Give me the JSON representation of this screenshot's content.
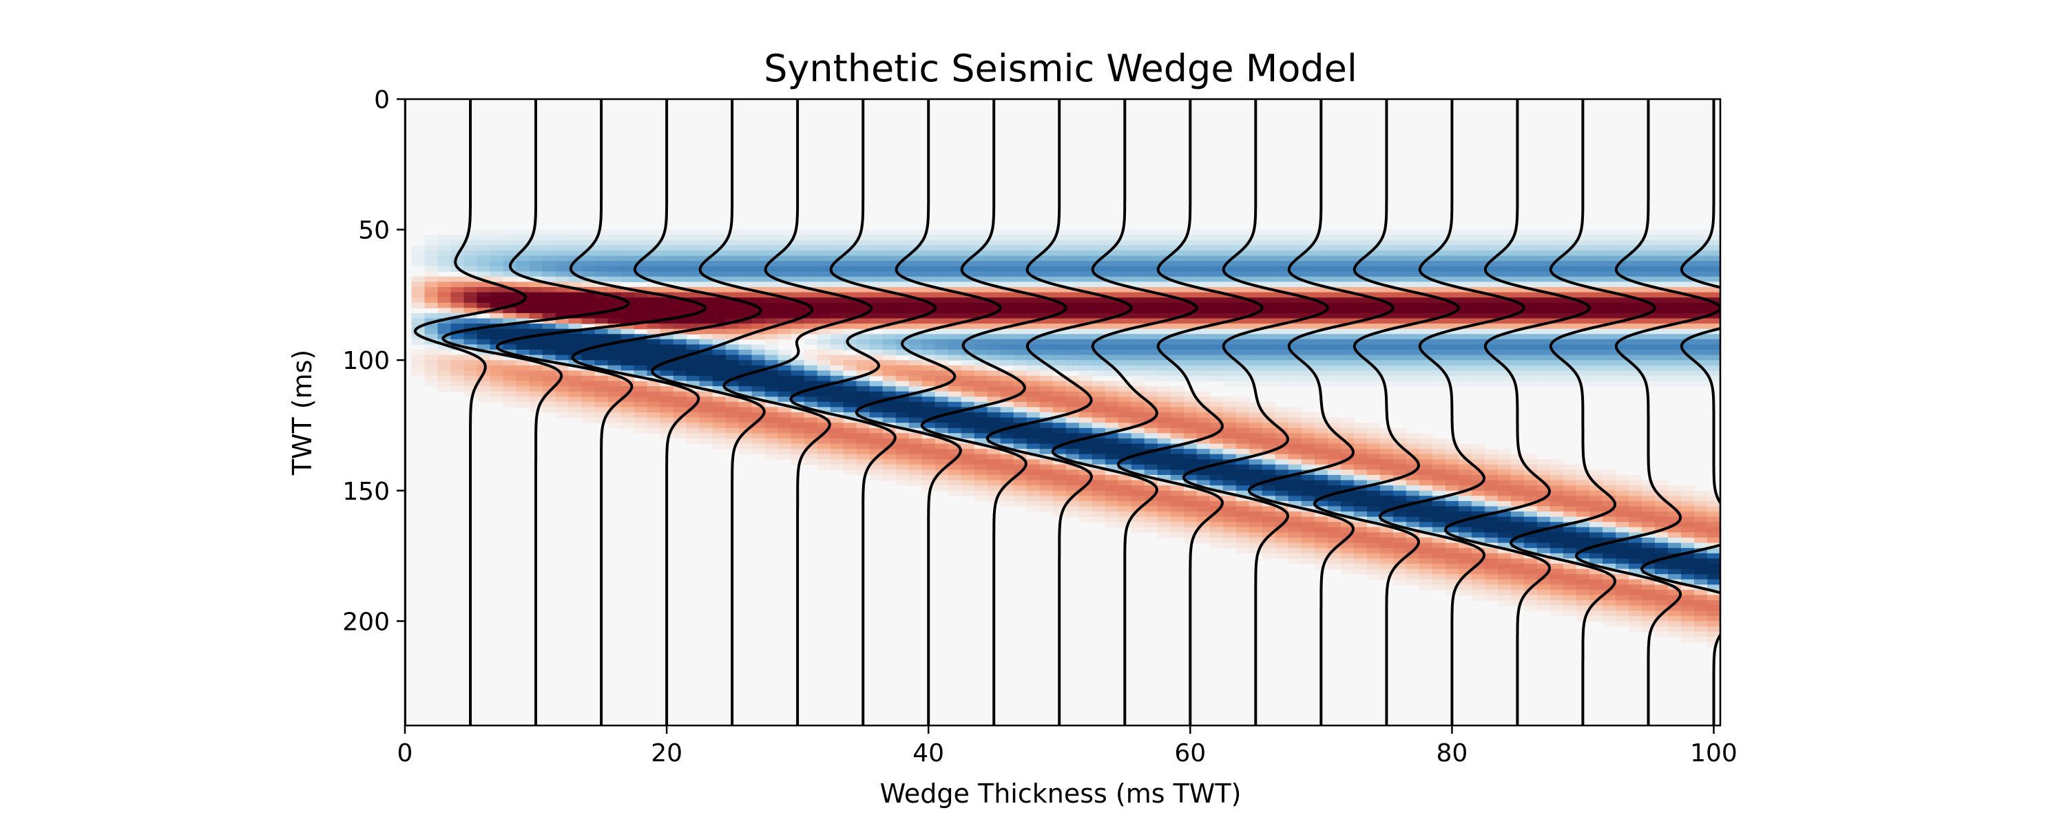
{
  "chart_data": {
    "type": "heatmap",
    "subtype": "seismic wiggle traces over variable-density image",
    "title": "Synthetic Seismic Wedge Model",
    "xlabel": "Wedge Thickness (ms TWT)",
    "ylabel": "TWT (ms)",
    "xlim": [
      0,
      100.5
    ],
    "ylim": [
      240,
      0
    ],
    "y_axis_inverted": true,
    "xticks": [
      0,
      20,
      40,
      60,
      80,
      100
    ],
    "yticks": [
      0,
      50,
      100,
      150,
      200
    ],
    "grid": false,
    "colormap": "RdBu (red = positive amplitude, blue = negative amplitude)",
    "colors": {
      "background": "#f7f7f7",
      "positive_max": "#67001f",
      "positive_mid": "#f4a582",
      "negative_max": "#053061",
      "negative_mid": "#92c5de",
      "trace_line": "#000000"
    },
    "traces": {
      "thickness_values": [
        0,
        5,
        10,
        15,
        20,
        25,
        30,
        35,
        40,
        45,
        50,
        55,
        60,
        65,
        70,
        75,
        80,
        85,
        90,
        95,
        100
      ],
      "top_interface_twt": 80,
      "top_polarity": "positive",
      "base_interface_twt_formula": "80 + thickness",
      "base_polarity": "negative",
      "wavelet": "Ricker",
      "wavelet_half_width_ms": 12
    }
  }
}
